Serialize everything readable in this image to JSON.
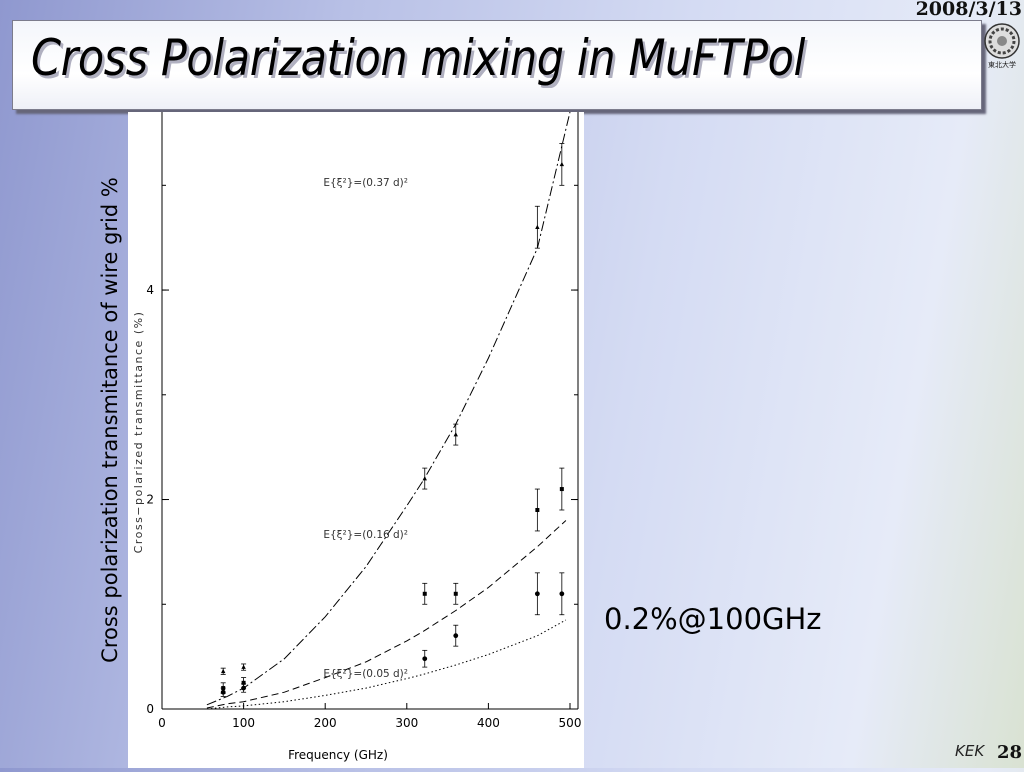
{
  "header": {
    "date": "2008/3/13",
    "title": "Cross Polarization mixing in MuFTPol",
    "logo_label": "東北大学"
  },
  "outer_ylabel": "Cross polarization transmitance of wire grid %",
  "annotation": "0.2%@100GHz",
  "footer": {
    "org": "KEK",
    "page": "28"
  },
  "colors": {
    "axis": "#000000",
    "curve": "#000000",
    "grid_panel": "#ffffff"
  },
  "chart_data": {
    "type": "scatter",
    "title": "",
    "xlabel": "Frequency (GHz)",
    "ylabel": "Cross−polarized transmittance (%)",
    "xlim": [
      0,
      500
    ],
    "ylim": [
      0,
      5.7
    ],
    "xticks": [
      0,
      100,
      200,
      300,
      400,
      500
    ],
    "yticks": [
      0,
      2,
      4
    ],
    "grid": false,
    "curves": [
      {
        "label": "E{ξ²}=(0.37 d)²",
        "style": "dashdot",
        "x": [
          55,
          80,
          100,
          150,
          200,
          250,
          300,
          320,
          360,
          400,
          460,
          500
        ],
        "y": [
          0.04,
          0.12,
          0.2,
          0.48,
          0.88,
          1.36,
          1.94,
          2.18,
          2.72,
          3.35,
          4.4,
          5.7
        ]
      },
      {
        "label": "E{ξ²}=(0.16 d)²",
        "style": "dashed",
        "x": [
          55,
          80,
          100,
          150,
          200,
          250,
          300,
          320,
          360,
          400,
          460,
          495
        ],
        "y": [
          0.01,
          0.05,
          0.07,
          0.16,
          0.3,
          0.45,
          0.65,
          0.74,
          0.94,
          1.16,
          1.55,
          1.8
        ]
      },
      {
        "label": "E{ξ²}=(0.05 d)²",
        "style": "dotted",
        "x": [
          55,
          80,
          100,
          150,
          200,
          250,
          300,
          320,
          360,
          400,
          460,
          495
        ],
        "y": [
          0.0,
          0.02,
          0.03,
          0.07,
          0.13,
          0.2,
          0.29,
          0.33,
          0.42,
          0.52,
          0.7,
          0.85
        ]
      }
    ],
    "series": [
      {
        "marker": "triangle",
        "points": [
          {
            "x": 75,
            "y": 0.36,
            "err": 0.03
          },
          {
            "x": 100,
            "y": 0.4,
            "err": 0.03
          },
          {
            "x": 322,
            "y": 2.2,
            "err": 0.1
          },
          {
            "x": 360,
            "y": 2.62,
            "err": 0.1
          },
          {
            "x": 460,
            "y": 4.6,
            "err": 0.2
          },
          {
            "x": 490,
            "y": 5.2,
            "err": 0.2
          }
        ]
      },
      {
        "marker": "square",
        "points": [
          {
            "x": 75,
            "y": 0.2,
            "err": 0.05
          },
          {
            "x": 100,
            "y": 0.25,
            "err": 0.05
          },
          {
            "x": 322,
            "y": 1.1,
            "err": 0.1
          },
          {
            "x": 360,
            "y": 1.1,
            "err": 0.1
          },
          {
            "x": 460,
            "y": 1.9,
            "err": 0.2
          },
          {
            "x": 490,
            "y": 2.1,
            "err": 0.2
          }
        ]
      },
      {
        "marker": "circle",
        "points": [
          {
            "x": 75,
            "y": 0.16,
            "err": 0.04
          },
          {
            "x": 100,
            "y": 0.2,
            "err": 0.04
          },
          {
            "x": 322,
            "y": 0.48,
            "err": 0.08
          },
          {
            "x": 360,
            "y": 0.7,
            "err": 0.1
          },
          {
            "x": 460,
            "y": 1.1,
            "err": 0.2
          },
          {
            "x": 490,
            "y": 1.1,
            "err": 0.2
          }
        ]
      }
    ]
  }
}
